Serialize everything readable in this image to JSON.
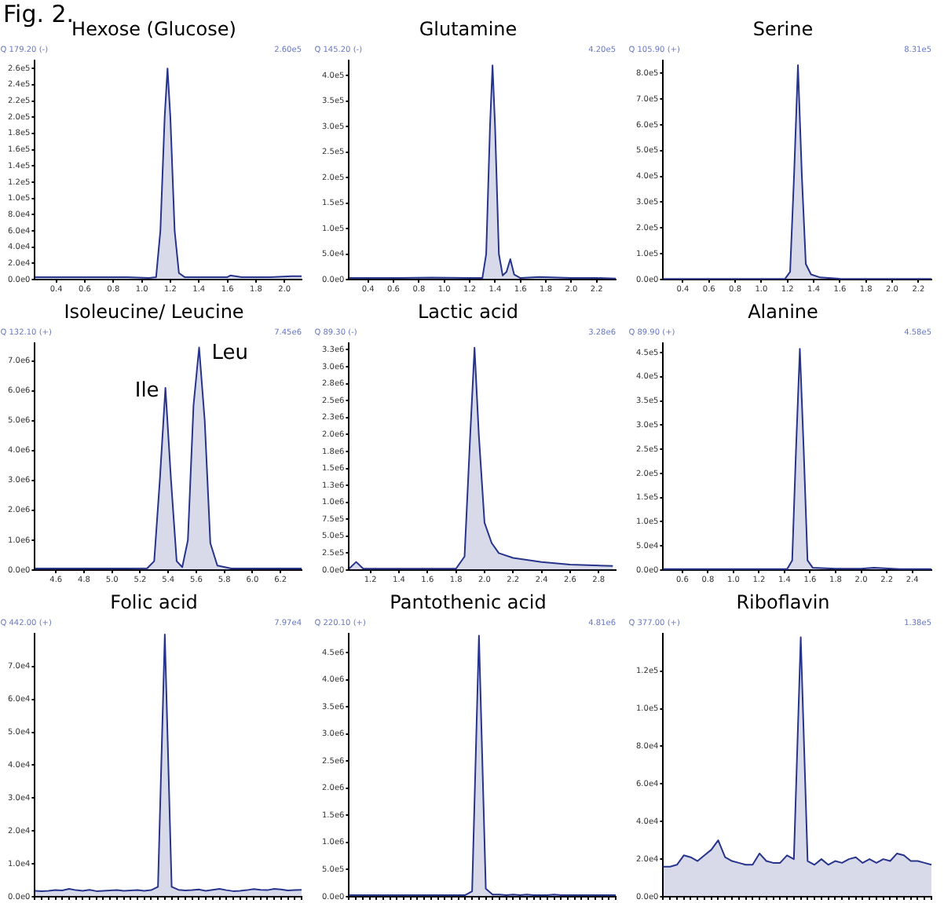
{
  "chart_data": [
    {
      "type": "area",
      "title": "Hexose (Glucose)",
      "annotations": [
        "Fig. 2.",
        "Q 179.20 (-)",
        "2.60e5"
      ],
      "marker": "none",
      "xlim": [
        0.25,
        2.12
      ],
      "xticks": [
        0.4,
        0.6,
        0.8,
        {
          "value": 1,
          "label": "1.0"
        },
        1.2,
        1.4,
        1.6,
        1.8,
        {
          "value": 2,
          "label": "2.0"
        }
      ],
      "ylim": [
        0,
        270000
      ],
      "yticks": [
        {
          "value": 0,
          "label": "0.0e0"
        },
        {
          "value": 20000,
          "label": "2.0e4"
        },
        {
          "value": 40000,
          "label": "4.0e4"
        },
        {
          "value": 60000,
          "label": "6.0e4"
        },
        {
          "value": 80000,
          "label": "8.0e4"
        },
        {
          "value": 100000,
          "label": "1.0e5"
        },
        {
          "value": 120000,
          "label": "1.2e5"
        },
        {
          "value": 140000,
          "label": "1.4e5"
        },
        {
          "value": 160000,
          "label": "1.6e5"
        },
        {
          "value": 180000,
          "label": "1.8e5"
        },
        {
          "value": 200000,
          "label": "2.0e5"
        },
        {
          "value": 220000,
          "label": "2.2e5"
        },
        {
          "value": 240000,
          "label": "2.4e5"
        },
        {
          "value": 260000,
          "label": "2.6e5"
        }
      ],
      "series": [
        {
          "color": "#27348b",
          "x": [
            0.25,
            0.5,
            0.7,
            0.9,
            1.05,
            1.1,
            1.13,
            1.16,
            1.18,
            1.2,
            1.23,
            1.26,
            1.3,
            1.4,
            1.6,
            1.62,
            1.7,
            1.9,
            2.05,
            2.12
          ],
          "values": [
            3000,
            3000,
            3000,
            3000,
            2000,
            3000,
            60000,
            200000,
            260000,
            200000,
            60000,
            8000,
            3000,
            3000,
            3000,
            5000,
            3000,
            3000,
            4000,
            4000
          ]
        }
      ]
    },
    {
      "type": "area",
      "title": "Glutamine",
      "annotations": [
        "Q 145.20 (-)",
        "4.20e5"
      ],
      "marker": "none",
      "xlim": [
        0.25,
        2.35
      ],
      "xticks": [
        0.4,
        0.6,
        0.8,
        {
          "value": 1,
          "label": "1.0"
        },
        1.2,
        1.4,
        1.6,
        1.8,
        {
          "value": 2,
          "label": "2.0"
        },
        2.2
      ],
      "ylim": [
        0,
        430000
      ],
      "yticks": [
        {
          "value": 0,
          "label": "0.0e0"
        },
        {
          "value": 50000,
          "label": "5.0e4"
        },
        {
          "value": 100000,
          "label": "1.0e5"
        },
        {
          "value": 150000,
          "label": "1.5e5"
        },
        {
          "value": 200000,
          "label": "2.0e5"
        },
        {
          "value": 250000,
          "label": "2.5e5"
        },
        {
          "value": 300000,
          "label": "3.0e5"
        },
        {
          "value": 350000,
          "label": "3.5e5"
        },
        {
          "value": 400000,
          "label": "4.0e5"
        }
      ],
      "series": [
        {
          "color": "#27348b",
          "x": [
            0.25,
            0.6,
            0.9,
            1.2,
            1.3,
            1.33,
            1.36,
            1.38,
            1.4,
            1.43,
            1.46,
            1.49,
            1.52,
            1.55,
            1.6,
            1.75,
            2.0,
            2.2,
            2.35
          ],
          "values": [
            3000,
            3000,
            4000,
            3000,
            3000,
            50000,
            300000,
            420000,
            300000,
            50000,
            8000,
            15000,
            40000,
            10000,
            3000,
            5000,
            3000,
            3000,
            2000
          ]
        }
      ]
    },
    {
      "type": "area",
      "title": "Serine",
      "annotations": [
        "Q 105.90 (+)",
        "8.31e5"
      ],
      "marker": "none",
      "xlim": [
        0.25,
        2.3
      ],
      "xticks": [
        0.4,
        0.6,
        0.8,
        {
          "value": 1,
          "label": "1.0"
        },
        1.2,
        1.4,
        1.6,
        1.8,
        {
          "value": 2,
          "label": "2.0"
        },
        2.2
      ],
      "ylim": [
        0,
        850000
      ],
      "yticks": [
        {
          "value": 0,
          "label": "0.0e0"
        },
        {
          "value": 100000,
          "label": "1.0e5"
        },
        {
          "value": 200000,
          "label": "2.0e5"
        },
        {
          "value": 300000,
          "label": "3.0e5"
        },
        {
          "value": 400000,
          "label": "4.0e5"
        },
        {
          "value": 500000,
          "label": "5.0e5"
        },
        {
          "value": 600000,
          "label": "6.0e5"
        },
        {
          "value": 700000,
          "label": "7.0e5"
        },
        {
          "value": 800000,
          "label": "8.0e5"
        }
      ],
      "series": [
        {
          "color": "#27348b",
          "x": [
            0.25,
            0.6,
            1.0,
            1.18,
            1.22,
            1.25,
            1.28,
            1.31,
            1.34,
            1.38,
            1.45,
            1.6,
            2.0,
            2.3
          ],
          "values": [
            2000,
            2000,
            2000,
            2000,
            30000,
            400000,
            831000,
            400000,
            60000,
            20000,
            8000,
            3000,
            2000,
            2000
          ]
        }
      ]
    },
    {
      "type": "area",
      "title": "Isoleucine/ Leucine",
      "annotations": [
        "Q 132.10 (+)",
        "7.45e6",
        {
          "text": "Ile",
          "x": 5.38,
          "y": 6100000
        },
        {
          "text": "Leu",
          "x": 5.62,
          "y": 7450000
        }
      ],
      "marker": "none",
      "xlim": [
        4.45,
        6.35
      ],
      "xticks": [
        4.6,
        4.8,
        {
          "value": 5,
          "label": "5.0"
        },
        5.2,
        5.4,
        5.6,
        5.8,
        {
          "value": 6,
          "label": "6.0"
        },
        6.2
      ],
      "ylim": [
        0,
        7600000
      ],
      "yticks": [
        {
          "value": 0,
          "label": "0.0e0"
        },
        {
          "value": 1000000,
          "label": "1.0e6"
        },
        {
          "value": 2000000,
          "label": "2.0e6"
        },
        {
          "value": 3000000,
          "label": "3.0e6"
        },
        {
          "value": 4000000,
          "label": "4.0e6"
        },
        {
          "value": 5000000,
          "label": "5.0e6"
        },
        {
          "value": 6000000,
          "label": "6.0e6"
        },
        {
          "value": 7000000,
          "label": "7.0e6"
        }
      ],
      "series": [
        {
          "color": "#27348b",
          "x": [
            4.45,
            4.8,
            5.1,
            5.25,
            5.3,
            5.34,
            5.38,
            5.42,
            5.46,
            5.5,
            5.54,
            5.58,
            5.62,
            5.66,
            5.7,
            5.75,
            5.85,
            6.0,
            6.35
          ],
          "values": [
            50000,
            50000,
            50000,
            60000,
            300000,
            3000000,
            6100000,
            3000000,
            300000,
            100000,
            1000000,
            5500000,
            7450000,
            5000000,
            900000,
            150000,
            50000,
            50000,
            50000
          ]
        }
      ]
    },
    {
      "type": "area",
      "title": "Lactic acid",
      "annotations": [
        "Q 89.30 (-)",
        "3.28e6"
      ],
      "marker": "none",
      "xlim": [
        1.05,
        2.92
      ],
      "xticks": [
        1.2,
        1.4,
        1.6,
        1.8,
        {
          "value": 2,
          "label": "2.0"
        },
        2.2,
        2.4,
        2.6,
        2.8
      ],
      "ylim": [
        0,
        3350000
      ],
      "yticks": [
        {
          "value": 0,
          "label": "0.0e0"
        },
        {
          "value": 250000,
          "label": "2.5e5"
        },
        {
          "value": 500000,
          "label": "5.0e5"
        },
        {
          "value": 750000,
          "label": "7.5e5"
        },
        {
          "value": 1000000,
          "label": "1.0e6"
        },
        {
          "value": 1250000,
          "label": "1.3e6"
        },
        {
          "value": 1500000,
          "label": "1.5e6"
        },
        {
          "value": 1750000,
          "label": "1.8e6"
        },
        {
          "value": 2000000,
          "label": "2.0e6"
        },
        {
          "value": 2250000,
          "label": "2.3e6"
        },
        {
          "value": 2500000,
          "label": "2.5e6"
        },
        {
          "value": 2750000,
          "label": "2.8e6"
        },
        {
          "value": 3000000,
          "label": "3.0e6"
        },
        {
          "value": 3250000,
          "label": "3.3e6"
        }
      ],
      "series": [
        {
          "color": "#27348b",
          "x": [
            1.05,
            1.1,
            1.15,
            1.2,
            1.5,
            1.8,
            1.86,
            1.9,
            1.93,
            1.96,
            2.0,
            2.05,
            2.1,
            2.2,
            2.4,
            2.6,
            2.9
          ],
          "values": [
            20000,
            120000,
            20000,
            20000,
            20000,
            20000,
            200000,
            2000000,
            3280000,
            2000000,
            700000,
            400000,
            250000,
            180000,
            120000,
            80000,
            60000
          ]
        }
      ]
    },
    {
      "type": "area",
      "title": "Alanine",
      "annotations": [
        "Q 89.90 (+)",
        "4.58e5"
      ],
      "marker": "none",
      "xlim": [
        0.45,
        2.55
      ],
      "xticks": [
        0.6,
        0.8,
        {
          "value": 1,
          "label": "1.0"
        },
        1.2,
        1.4,
        1.6,
        1.8,
        {
          "value": 2,
          "label": "2.0"
        },
        2.2,
        2.4
      ],
      "ylim": [
        0,
        470000
      ],
      "yticks": [
        {
          "value": 0,
          "label": "0.0e0"
        },
        {
          "value": 50000,
          "label": "5.0e4"
        },
        {
          "value": 100000,
          "label": "1.0e5"
        },
        {
          "value": 150000,
          "label": "1.5e5"
        },
        {
          "value": 200000,
          "label": "2.0e5"
        },
        {
          "value": 250000,
          "label": "2.5e5"
        },
        {
          "value": 300000,
          "label": "3.0e5"
        },
        {
          "value": 350000,
          "label": "3.5e5"
        },
        {
          "value": 400000,
          "label": "4.0e5"
        },
        {
          "value": 450000,
          "label": "4.5e5"
        }
      ],
      "series": [
        {
          "color": "#27348b",
          "x": [
            0.45,
            0.8,
            1.2,
            1.42,
            1.46,
            1.49,
            1.52,
            1.55,
            1.58,
            1.62,
            1.8,
            2.0,
            2.1,
            2.3,
            2.55
          ],
          "values": [
            2000,
            2000,
            2000,
            2000,
            20000,
            250000,
            458000,
            250000,
            20000,
            5000,
            3000,
            3000,
            5000,
            2000,
            2000
          ]
        }
      ]
    },
    {
      "type": "area",
      "title": "Folic acid",
      "annotations": [
        "Q 442.00 (+)",
        "7.97e4"
      ],
      "marker": "none",
      "tick_labels": "y",
      "categories": [
        null,
        null,
        null,
        null,
        null,
        null,
        null,
        null,
        null,
        null,
        null,
        null,
        null,
        null,
        null,
        null,
        null,
        null,
        null,
        null,
        null,
        null,
        null,
        null,
        null,
        null,
        null,
        null,
        null,
        null,
        null,
        null,
        null,
        null,
        null,
        null,
        null,
        null,
        null,
        null
      ],
      "ylim": [
        0,
        80000
      ],
      "yticks": [
        {
          "value": 0,
          "label": "0.0e0"
        },
        {
          "value": 10000,
          "label": "1.0e4"
        },
        {
          "value": 20000,
          "label": "2.0e4"
        },
        {
          "value": 30000,
          "label": "3.0e4"
        },
        {
          "value": 40000,
          "label": "4.0e4"
        },
        {
          "value": 50000,
          "label": "5.0e4"
        },
        {
          "value": 60000,
          "label": "6.0e4"
        },
        {
          "value": 70000,
          "label": "7.0e4"
        }
      ],
      "series": [
        {
          "color": "#27348b",
          "values": [
            1800,
            1700,
            1800,
            2000,
            1900,
            2400,
            2000,
            1800,
            2100,
            1700,
            1800,
            1900,
            2000,
            1800,
            1900,
            2000,
            1800,
            2000,
            3000,
            79700,
            3000,
            2100,
            1900,
            2000,
            2200,
            1800,
            2100,
            2400,
            2000,
            1700,
            1800,
            2000,
            2300,
            2100,
            2000,
            2400,
            2200,
            1900,
            2000,
            2100
          ]
        }
      ]
    },
    {
      "type": "area",
      "title": "Pantothenic acid",
      "annotations": [
        "Q 220.10 (+)",
        "4.81e6"
      ],
      "marker": "none",
      "tick_labels": "y",
      "categories": [
        null,
        null,
        null,
        null,
        null,
        null,
        null,
        null,
        null,
        null,
        null,
        null,
        null,
        null,
        null,
        null,
        null,
        null,
        null,
        null,
        null,
        null,
        null,
        null,
        null,
        null,
        null,
        null,
        null,
        null,
        null,
        null,
        null,
        null,
        null,
        null,
        null,
        null,
        null,
        null
      ],
      "ylim": [
        0,
        4850000
      ],
      "yticks": [
        {
          "value": 0,
          "label": "0.0e0"
        },
        {
          "value": 500000,
          "label": "5.0e5"
        },
        {
          "value": 1000000,
          "label": "1.0e6"
        },
        {
          "value": 1500000,
          "label": "1.5e6"
        },
        {
          "value": 2000000,
          "label": "2.0e6"
        },
        {
          "value": 2500000,
          "label": "2.5e6"
        },
        {
          "value": 3000000,
          "label": "3.0e6"
        },
        {
          "value": 3500000,
          "label": "3.5e6"
        },
        {
          "value": 4000000,
          "label": "4.0e6"
        },
        {
          "value": 4500000,
          "label": "4.5e6"
        }
      ],
      "series": [
        {
          "color": "#27348b",
          "values": [
            30000,
            30000,
            30000,
            30000,
            30000,
            30000,
            30000,
            30000,
            30000,
            30000,
            30000,
            30000,
            30000,
            30000,
            30000,
            30000,
            30000,
            30000,
            100000,
            4810000,
            150000,
            40000,
            40000,
            30000,
            40000,
            30000,
            40000,
            30000,
            30000,
            30000,
            40000,
            30000,
            30000,
            30000,
            30000,
            30000,
            30000,
            30000,
            30000,
            30000
          ]
        }
      ]
    },
    {
      "type": "area",
      "title": "Riboflavin",
      "annotations": [
        "Q 377.00 (+)",
        "1.38e5"
      ],
      "marker": "none",
      "tick_labels": "y",
      "categories": [
        null,
        null,
        null,
        null,
        null,
        null,
        null,
        null,
        null,
        null,
        null,
        null,
        null,
        null,
        null,
        null,
        null,
        null,
        null,
        null,
        null,
        null,
        null,
        null,
        null,
        null,
        null,
        null,
        null,
        null,
        null,
        null,
        null,
        null,
        null,
        null,
        null,
        null,
        null,
        null
      ],
      "ylim": [
        0,
        140000
      ],
      "yticks": [
        {
          "value": 0,
          "label": "0.0e0"
        },
        {
          "value": 20000,
          "label": "2.0e4"
        },
        {
          "value": 40000,
          "label": "4.0e4"
        },
        {
          "value": 60000,
          "label": "6.0e4"
        },
        {
          "value": 80000,
          "label": "8.0e4"
        },
        {
          "value": 100000,
          "label": "1.0e5"
        },
        {
          "value": 120000,
          "label": "1.2e5"
        }
      ],
      "series": [
        {
          "color": "#27348b",
          "values": [
            16000,
            16000,
            17000,
            22000,
            21000,
            19000,
            22000,
            25000,
            30000,
            21000,
            19000,
            18000,
            17000,
            17000,
            23000,
            19000,
            18000,
            18000,
            22000,
            20000,
            138000,
            19000,
            17000,
            20000,
            17000,
            19000,
            18000,
            20000,
            21000,
            18000,
            20000,
            18000,
            20000,
            19000,
            23000,
            22000,
            19000,
            19000,
            18000,
            17000
          ]
        }
      ]
    }
  ]
}
